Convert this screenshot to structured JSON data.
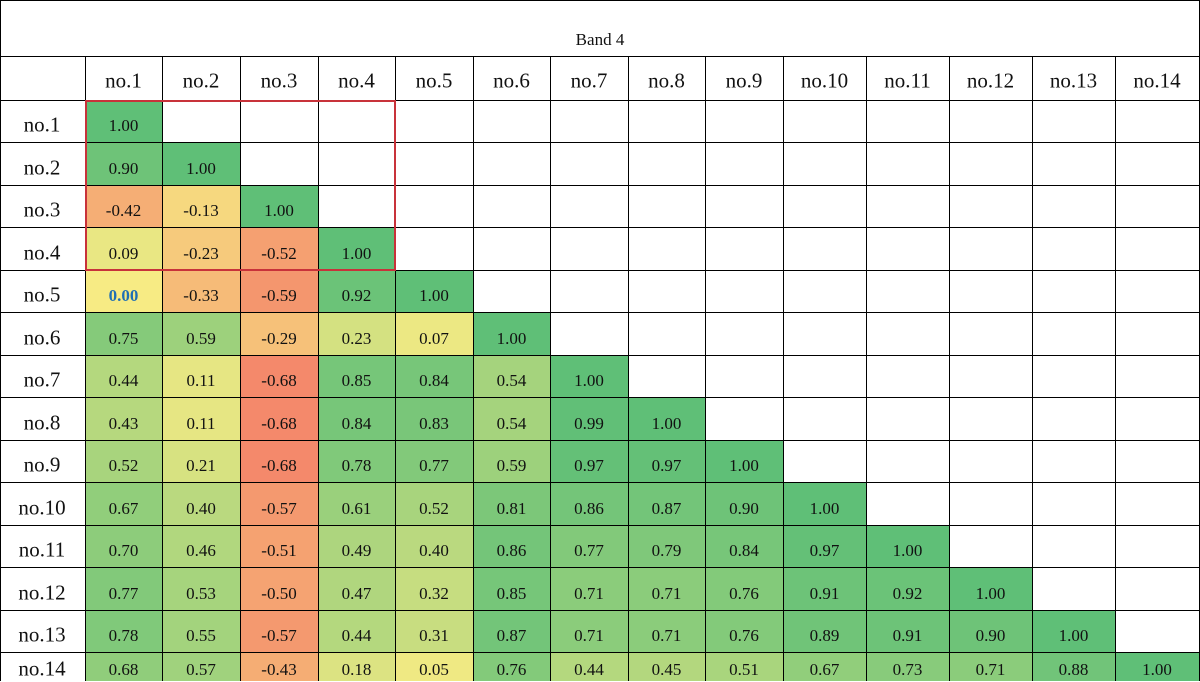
{
  "chart_data": {
    "type": "heatmap",
    "title": "Band 4",
    "columns": [
      "no.1",
      "no.2",
      "no.3",
      "no.4",
      "no.5",
      "no.6",
      "no.7",
      "no.8",
      "no.9",
      "no.10",
      "no.11",
      "no.12",
      "no.13",
      "no.14"
    ],
    "rows": [
      "no.1",
      "no.2",
      "no.3",
      "no.4",
      "no.5",
      "no.6",
      "no.7",
      "no.8",
      "no.9",
      "no.10",
      "no.11",
      "no.12",
      "no.13",
      "no.14"
    ],
    "matrix": [
      [
        "1.00"
      ],
      [
        "0.90",
        "1.00"
      ],
      [
        "-0.42",
        "-0.13",
        "1.00"
      ],
      [
        "0.09",
        "-0.23",
        "-0.52",
        "1.00"
      ],
      [
        "0.00",
        "-0.33",
        "-0.59",
        "0.92",
        "1.00"
      ],
      [
        "0.75",
        "0.59",
        "-0.29",
        "0.23",
        "0.07",
        "1.00"
      ],
      [
        "0.44",
        "0.11",
        "-0.68",
        "0.85",
        "0.84",
        "0.54",
        "1.00"
      ],
      [
        "0.43",
        "0.11",
        "-0.68",
        "0.84",
        "0.83",
        "0.54",
        "0.99",
        "1.00"
      ],
      [
        "0.52",
        "0.21",
        "-0.68",
        "0.78",
        "0.77",
        "0.59",
        "0.97",
        "0.97",
        "1.00"
      ],
      [
        "0.67",
        "0.40",
        "-0.57",
        "0.61",
        "0.52",
        "0.81",
        "0.86",
        "0.87",
        "0.90",
        "1.00"
      ],
      [
        "0.70",
        "0.46",
        "-0.51",
        "0.49",
        "0.40",
        "0.86",
        "0.77",
        "0.79",
        "0.84",
        "0.97",
        "1.00"
      ],
      [
        "0.77",
        "0.53",
        "-0.50",
        "0.47",
        "0.32",
        "0.85",
        "0.71",
        "0.71",
        "0.76",
        "0.91",
        "0.92",
        "1.00"
      ],
      [
        "0.78",
        "0.55",
        "-0.57",
        "0.44",
        "0.31",
        "0.87",
        "0.71",
        "0.71",
        "0.76",
        "0.89",
        "0.91",
        "0.90",
        "1.00"
      ],
      [
        "0.68",
        "0.57",
        "-0.43",
        "0.18",
        "0.05",
        "0.76",
        "0.44",
        "0.45",
        "0.51",
        "0.67",
        "0.73",
        "0.71",
        "0.88",
        "1.00"
      ]
    ],
    "highlighted_cell": {
      "row": "no.5",
      "column": "no.1",
      "text_color": "#1f6fb4"
    },
    "outlined_block": {
      "rows": [
        "no.1",
        "no.2",
        "no.3",
        "no.4"
      ],
      "columns": [
        "no.1",
        "no.2",
        "no.3",
        "no.4"
      ],
      "color": "#c8323a"
    },
    "color_scale": {
      "min": -0.68,
      "max": 1.0,
      "low": "#f4896b",
      "mid": "#f7eb84",
      "high": "#5fbf77"
    },
    "grid": true
  }
}
